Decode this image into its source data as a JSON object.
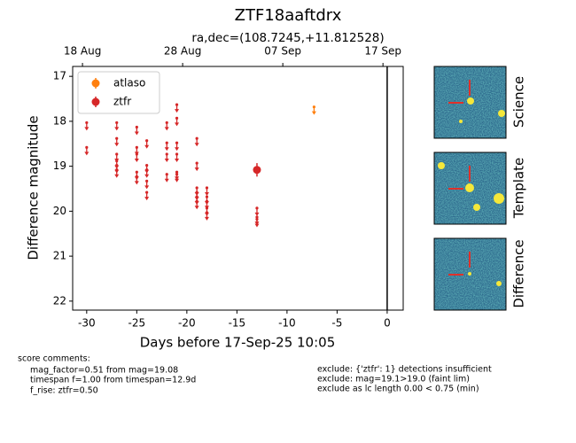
{
  "chart_data": {
    "type": "scatter",
    "title": "ZTF18aaftdrx",
    "subtitle": "ra,dec=(108.7245,+11.812528)",
    "x_label": "Days before 17-Sep-25 10:05",
    "y_label": "Difference magnitude",
    "xlim": [
      -31.4,
      1.6
    ],
    "ylim": [
      22.2,
      16.78
    ],
    "xticks": [
      -30,
      -25,
      -20,
      -15,
      -10,
      -5,
      0
    ],
    "yticks": [
      17,
      18,
      19,
      20,
      21,
      22
    ],
    "top_xticks": [
      {
        "value": -30.42,
        "label": "18 Aug"
      },
      {
        "value": -20.42,
        "label": "28 Aug"
      },
      {
        "value": -10.42,
        "label": "07 Sep"
      },
      {
        "value": -0.42,
        "label": "17 Sep"
      }
    ],
    "vline": 0,
    "legend": "upper left",
    "series": [
      {
        "name": "atlaso",
        "color": "#ff7f0e",
        "x": [
          -7.3
        ],
        "values": [
          17.7
        ],
        "upper_limit": [
          true
        ],
        "errors": [
          null
        ]
      },
      {
        "name": "ztfr",
        "color": "#d62728",
        "x": [
          -30,
          -30,
          -27,
          -27,
          -27,
          -27,
          -27,
          -27,
          -25,
          -25,
          -25,
          -25,
          -25,
          -24,
          -24,
          -24,
          -24,
          -24,
          -22,
          -22,
          -22,
          -22,
          -21,
          -21,
          -21,
          -21,
          -21,
          -21,
          -19,
          -19,
          -19,
          -19,
          -19,
          -19,
          -18,
          -18,
          -18,
          -18,
          -18,
          -13,
          -13,
          -13,
          -13
        ],
        "values": [
          18.05,
          18.6,
          18.05,
          18.4,
          18.75,
          18.9,
          19.0,
          19.1,
          18.15,
          18.6,
          18.75,
          19.15,
          19.25,
          18.45,
          19.0,
          19.1,
          19.35,
          19.6,
          18.05,
          18.5,
          18.75,
          19.2,
          17.65,
          17.95,
          18.5,
          18.75,
          19.15,
          19.2,
          18.4,
          18.95,
          19.5,
          19.6,
          19.7,
          19.8,
          19.5,
          19.7,
          19.8,
          19.95,
          20.05,
          19.08,
          19.95,
          20.15,
          20.2
        ],
        "upper_limit": [
          true,
          true,
          true,
          true,
          true,
          true,
          true,
          true,
          true,
          true,
          true,
          true,
          true,
          true,
          true,
          true,
          true,
          true,
          true,
          true,
          true,
          true,
          true,
          true,
          true,
          true,
          true,
          true,
          true,
          true,
          true,
          true,
          true,
          true,
          true,
          true,
          true,
          true,
          true,
          false,
          true,
          true,
          true
        ],
        "errors": [
          null,
          null,
          null,
          null,
          null,
          null,
          null,
          null,
          null,
          null,
          null,
          null,
          null,
          null,
          null,
          null,
          null,
          null,
          null,
          null,
          null,
          null,
          null,
          null,
          null,
          null,
          null,
          null,
          null,
          null,
          null,
          null,
          null,
          null,
          null,
          null,
          null,
          null,
          null,
          0.15,
          null,
          null,
          null
        ]
      }
    ],
    "cutouts": [
      "Science",
      "Template",
      "Difference"
    ],
    "score_comments": {
      "title": "score comments:",
      "lines": [
        "mag_factor=0.51 from mag=19.08",
        "timespan f=1.00 from timespan=12.9d",
        "f_rise: ztfr=0.50"
      ]
    },
    "exclusions": [
      "exclude: {'ztfr': 1} detections insufficient",
      "exclude: mag=19.1>19.0 (faint lim)",
      "exclude as lc length 0.00 < 0.75 (min)"
    ]
  }
}
